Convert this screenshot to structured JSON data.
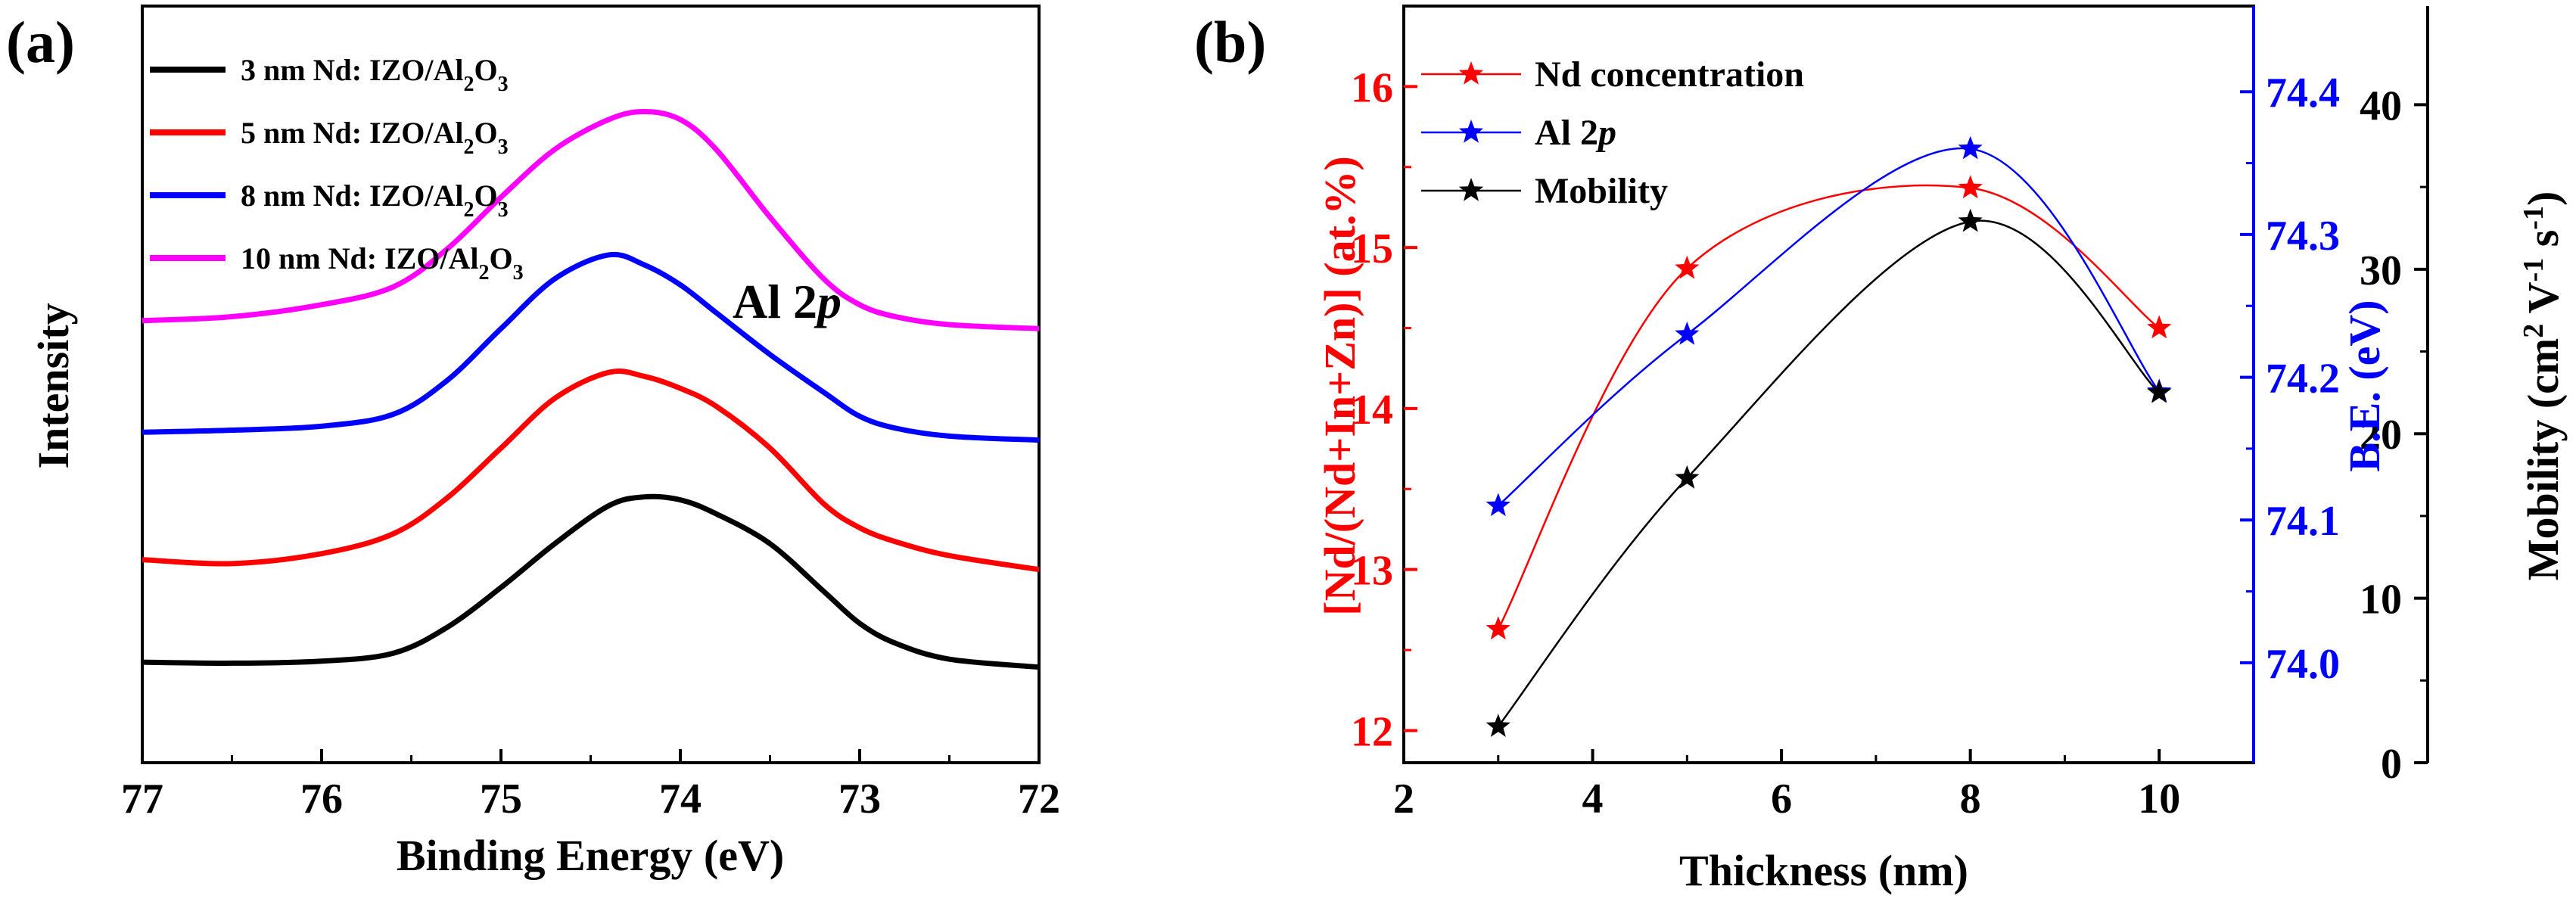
{
  "panel_a": {
    "label": "(a)",
    "annotation": "Al 2",
    "annotation_italic": "p",
    "chart_data": {
      "type": "line",
      "xlabel": "Binding Energy (eV)",
      "ylabel": "Intensity",
      "xlim": [
        77,
        72
      ],
      "x_reversed": true,
      "y_ticks_shown": false,
      "xticks": [
        "77",
        "76",
        "75",
        "74",
        "73",
        "72"
      ],
      "legend_position": "top-left",
      "series": [
        {
          "name": "3 nm Nd: IZO/Al2O3",
          "legend_parts": [
            "3 nm Nd: IZO/Al",
            "2",
            "O",
            "3"
          ],
          "color": "#000000",
          "x": [
            77,
            76.5,
            76,
            75.6,
            75.3,
            75.0,
            74.7,
            74.4,
            74.2,
            74.0,
            73.8,
            73.5,
            73.2,
            73.0,
            72.8,
            72.5,
            72.0
          ],
          "y": [
            1.05,
            1.0,
            1.1,
            1.5,
            2.8,
            4.8,
            7.0,
            8.9,
            9.35,
            9.2,
            8.5,
            7.0,
            4.6,
            3.0,
            2.0,
            1.2,
            0.8
          ]
        },
        {
          "name": "5 nm Nd: IZO/Al2O3",
          "legend_parts": [
            "5 nm Nd: IZO/Al",
            "2",
            "O",
            "3"
          ],
          "color": "#ff0000",
          "x": [
            77,
            76.5,
            76,
            75.6,
            75.3,
            75.0,
            74.7,
            74.4,
            74.2,
            74.0,
            73.8,
            73.5,
            73.2,
            73.0,
            72.8,
            72.5,
            72.0
          ],
          "y": [
            6.2,
            6.0,
            6.5,
            7.5,
            9.3,
            11.8,
            14.3,
            15.6,
            15.4,
            14.8,
            13.9,
            11.8,
            9.0,
            7.8,
            7.1,
            6.4,
            5.7
          ]
        },
        {
          "name": "8 nm Nd: IZO/Al2O3",
          "legend_parts": [
            "8 nm Nd: IZO/Al",
            "2",
            "O",
            "3"
          ],
          "color": "#0000ff",
          "x": [
            77,
            76.5,
            76,
            75.6,
            75.3,
            75.0,
            74.7,
            74.4,
            74.2,
            74.0,
            73.8,
            73.5,
            73.2,
            73.0,
            72.8,
            72.5,
            72.0
          ],
          "y": [
            12.6,
            12.7,
            12.9,
            13.5,
            15.2,
            17.8,
            20.3,
            21.5,
            21.0,
            20.0,
            18.6,
            16.5,
            14.6,
            13.4,
            12.8,
            12.4,
            12.2
          ]
        },
        {
          "name": "10 nm Nd: IZO/Al2O3",
          "legend_parts": [
            "10 nm Nd: IZO/Al",
            "2",
            "O",
            "3"
          ],
          "color": "#ff00ff",
          "x": [
            77,
            76.5,
            76,
            75.6,
            75.3,
            75.0,
            74.7,
            74.4,
            74.2,
            74.0,
            73.8,
            73.5,
            73.2,
            73.0,
            72.8,
            72.5,
            72.0
          ],
          "y": [
            18.2,
            18.4,
            19.0,
            19.9,
            21.8,
            24.4,
            26.8,
            28.3,
            28.7,
            28.3,
            26.8,
            23.4,
            20.3,
            19.0,
            18.4,
            18.0,
            17.8
          ]
        }
      ],
      "ylim": [
        -4,
        34
      ]
    }
  },
  "panel_b": {
    "label": "(b)",
    "chart_data": {
      "type": "line",
      "xlabel": "Thickness (nm)",
      "xlim": [
        2,
        11
      ],
      "xticks": [
        "2",
        "4",
        "6",
        "8",
        "10"
      ],
      "legend_position": "top-left",
      "x": [
        3,
        5,
        8,
        10
      ],
      "axes": {
        "left": {
          "label": "[Nd/(Nd+In+Zn)] (at.%)",
          "ylim": [
            11.8,
            16.5
          ],
          "ticks": [
            "12",
            "13",
            "14",
            "15",
            "16"
          ],
          "color": "#ff0000"
        },
        "right1": {
          "label": "B.E. (eV)",
          "ylim": [
            73.93,
            74.46
          ],
          "ticks": [
            "74.0",
            "74.1",
            "74.2",
            "74.3",
            "74.4"
          ],
          "color": "#0000ff"
        },
        "right2": {
          "label_parts": [
            "Mobility (cm",
            "2",
            " V",
            "-1",
            " s",
            "-1",
            ")"
          ],
          "label": "Mobility (cm2 V-1 s-1)",
          "ylim": [
            0,
            46
          ],
          "ticks": [
            "0",
            "10",
            "20",
            "30",
            "40"
          ],
          "color": "#000000"
        }
      },
      "series": [
        {
          "name": "Nd concentration",
          "axis": "left",
          "color": "#ff0000",
          "values": [
            12.63,
            14.87,
            15.37,
            14.5
          ]
        },
        {
          "name_parts": [
            "Al 2",
            "p"
          ],
          "name": "Al 2p",
          "axis": "right1",
          "color": "#0000ff",
          "values": [
            74.11,
            74.23,
            74.36,
            74.19
          ]
        },
        {
          "name": "Mobility",
          "axis": "right2",
          "color": "#000000",
          "values": [
            2.2,
            17.3,
            32.9,
            22.5
          ]
        }
      ]
    }
  }
}
